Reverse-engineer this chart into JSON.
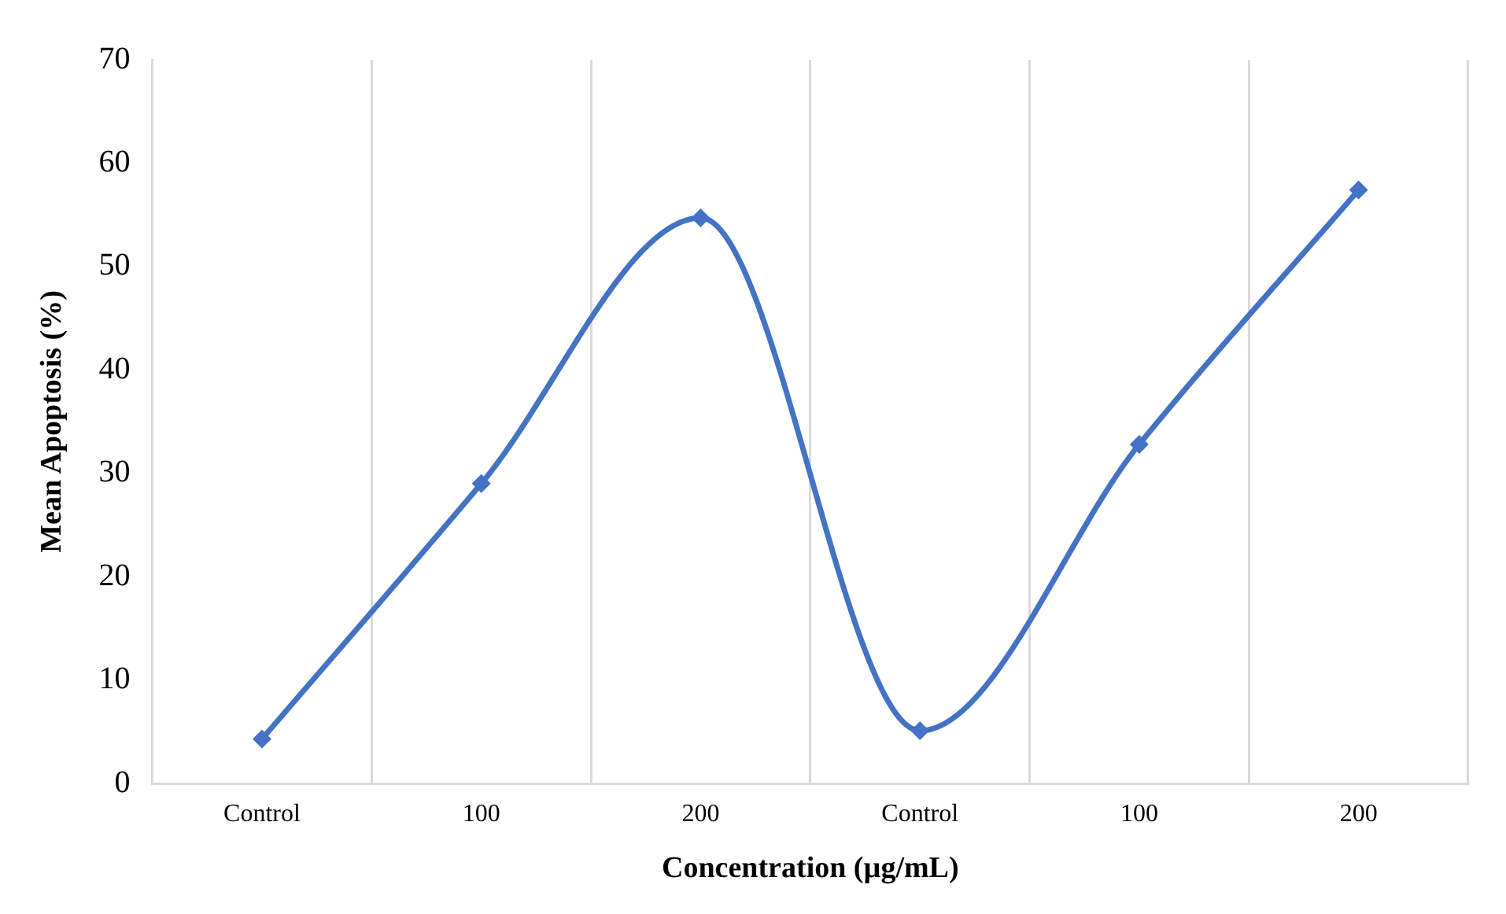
{
  "chart_data": {
    "type": "line",
    "categories": [
      "Control",
      "100",
      "200",
      "Control",
      "100",
      "200"
    ],
    "series": [
      {
        "color": "#4472c4",
        "values": [
          4.3,
          29.0,
          54.7,
          5.1,
          32.8,
          57.4
        ]
      }
    ],
    "xlabel": "Concentration (µg/mL)",
    "ylabel": "Mean Apoptosis (%)",
    "ylim": [
      0,
      70
    ],
    "yticks": [
      0,
      10,
      20,
      30,
      40,
      50,
      60,
      70
    ],
    "grid": "x",
    "marker": "diamond",
    "line_style": "solid",
    "legend": false
  }
}
